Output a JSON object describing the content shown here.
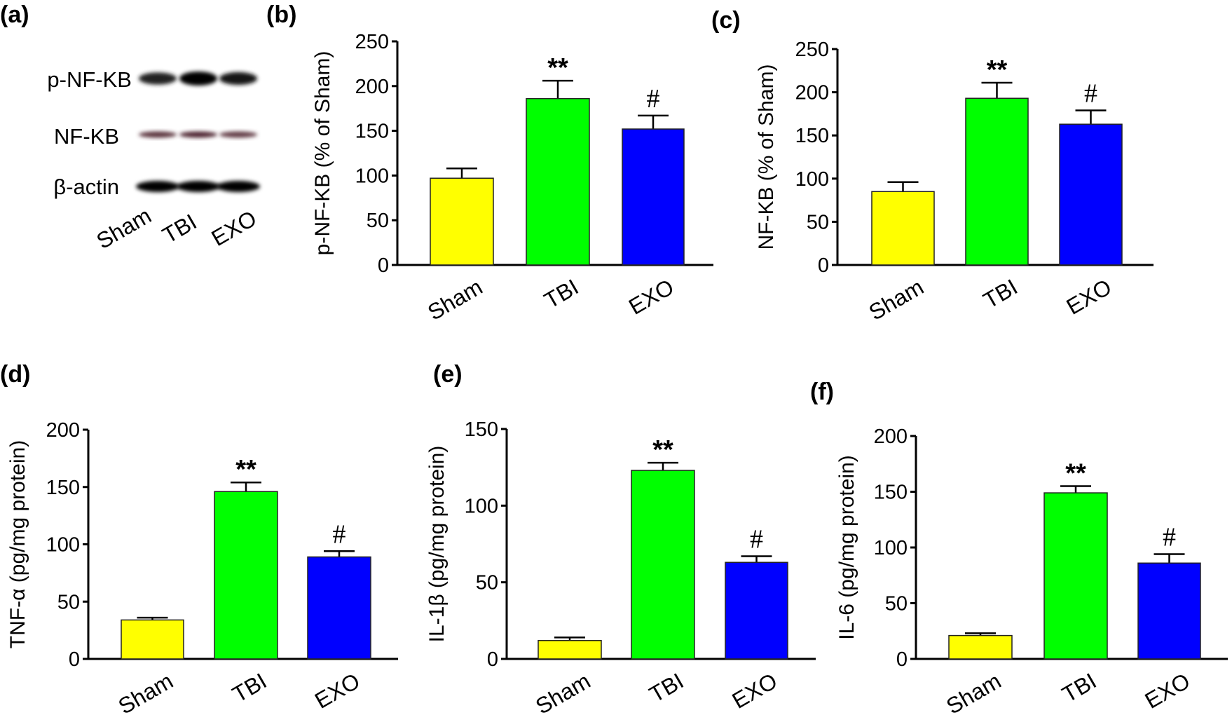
{
  "figure": {
    "panel_a": {
      "label": "(a)",
      "rows": [
        {
          "name": "p-NF-KB",
          "intensities": [
            0.55,
            1.0,
            0.7
          ]
        },
        {
          "name": "NF-KB",
          "intensities": [
            0.6,
            0.75,
            0.5
          ]
        },
        {
          "name": "β-actin",
          "intensities": [
            1.0,
            1.0,
            1.0
          ]
        }
      ],
      "lanes": [
        "Sham",
        "TBI",
        "EXO"
      ]
    },
    "colors": {
      "Sham": "#ffff00",
      "TBI": "#00ff00",
      "EXO": "#0000ff"
    }
  },
  "chart_data": [
    {
      "id": "b",
      "label": "(b)",
      "type": "bar",
      "categories": [
        "Sham",
        "TBI",
        "EXO"
      ],
      "values": [
        97,
        186,
        152
      ],
      "errors": [
        11,
        20,
        15
      ],
      "annotations": [
        "",
        "**",
        "#"
      ],
      "ylabel": "p-NF-KB (% of Sham)",
      "ylim": [
        0,
        250
      ],
      "yticks": [
        0,
        50,
        100,
        150,
        200,
        250
      ],
      "grid": false
    },
    {
      "id": "c",
      "label": "(c)",
      "type": "bar",
      "categories": [
        "Sham",
        "TBI",
        "EXO"
      ],
      "values": [
        85,
        193,
        163
      ],
      "errors": [
        11,
        18,
        16
      ],
      "annotations": [
        "",
        "**",
        "#"
      ],
      "ylabel": "NF-KB (% of Sham)",
      "ylim": [
        0,
        250
      ],
      "yticks": [
        0,
        50,
        100,
        150,
        200,
        250
      ],
      "grid": false
    },
    {
      "id": "d",
      "label": "(d)",
      "type": "bar",
      "categories": [
        "Sham",
        "TBI",
        "EXO"
      ],
      "values": [
        34,
        146,
        89
      ],
      "errors": [
        2,
        8,
        5
      ],
      "annotations": [
        "",
        "**",
        "#"
      ],
      "ylabel": "TNF-α (pg/mg protein)",
      "ylim": [
        0,
        200
      ],
      "yticks": [
        0,
        50,
        100,
        150,
        200
      ],
      "grid": false
    },
    {
      "id": "e",
      "label": "(e)",
      "type": "bar",
      "categories": [
        "Sham",
        "TBI",
        "EXO"
      ],
      "values": [
        12,
        123,
        63
      ],
      "errors": [
        2,
        5,
        4
      ],
      "annotations": [
        "",
        "**",
        "#"
      ],
      "ylabel": "IL-1β (pg/mg protein)",
      "ylim": [
        0,
        150
      ],
      "yticks": [
        0,
        50,
        100,
        150
      ],
      "grid": false
    },
    {
      "id": "f",
      "label": "(f)",
      "type": "bar",
      "categories": [
        "Sham",
        "TBI",
        "EXO"
      ],
      "values": [
        21,
        149,
        86
      ],
      "errors": [
        2,
        6,
        8
      ],
      "annotations": [
        "",
        "**",
        "#"
      ],
      "ylabel": "IL-6 (pg/mg protein)",
      "ylim": [
        0,
        200
      ],
      "yticks": [
        0,
        50,
        100,
        150,
        200
      ],
      "grid": false
    }
  ]
}
